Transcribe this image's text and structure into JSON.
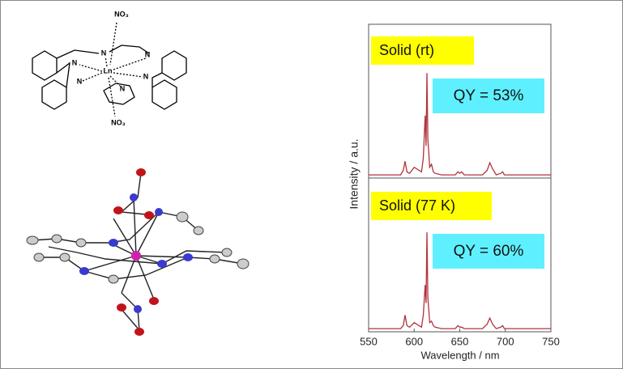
{
  "molecule": {
    "labels": [
      "NO₃",
      "N",
      "N",
      "N",
      "N",
      "N",
      "N",
      "Ln",
      "NO₃"
    ]
  },
  "chart_data": {
    "type": "line",
    "xlabel": "Wavelength / nm",
    "ylabel": "Intensity / a.u.",
    "xlim": [
      550,
      750
    ],
    "xticks": [
      550,
      600,
      650,
      700,
      750
    ],
    "ylim": [
      0,
      100
    ],
    "x": [
      550,
      585,
      588,
      590,
      592,
      595,
      600,
      608,
      610,
      612,
      613,
      614,
      615,
      617,
      619,
      621,
      623,
      630,
      645,
      648,
      650,
      652,
      655,
      675,
      680,
      683,
      686,
      690,
      695,
      697,
      699,
      705,
      750
    ],
    "series": [
      {
        "name": "Solid (rt)",
        "annotation": "QY = 53%",
        "color": "#b0343a",
        "values": [
          1,
          1,
          4,
          10,
          3,
          2,
          6,
          3,
          12,
          40,
          20,
          68,
          25,
          6,
          8,
          3,
          2,
          1,
          1,
          3,
          2,
          3,
          1,
          1,
          4,
          9,
          5,
          1,
          2,
          3,
          1,
          1,
          1
        ]
      },
      {
        "name": "Solid (77 K)",
        "annotation": "QY = 60%",
        "color": "#b0343a",
        "values": [
          1,
          1,
          3,
          10,
          3,
          2,
          5,
          2,
          10,
          30,
          18,
          65,
          22,
          5,
          6,
          3,
          2,
          1,
          1,
          3,
          2,
          2,
          1,
          1,
          4,
          8,
          4,
          1,
          2,
          3,
          1,
          1,
          1
        ]
      }
    ]
  }
}
